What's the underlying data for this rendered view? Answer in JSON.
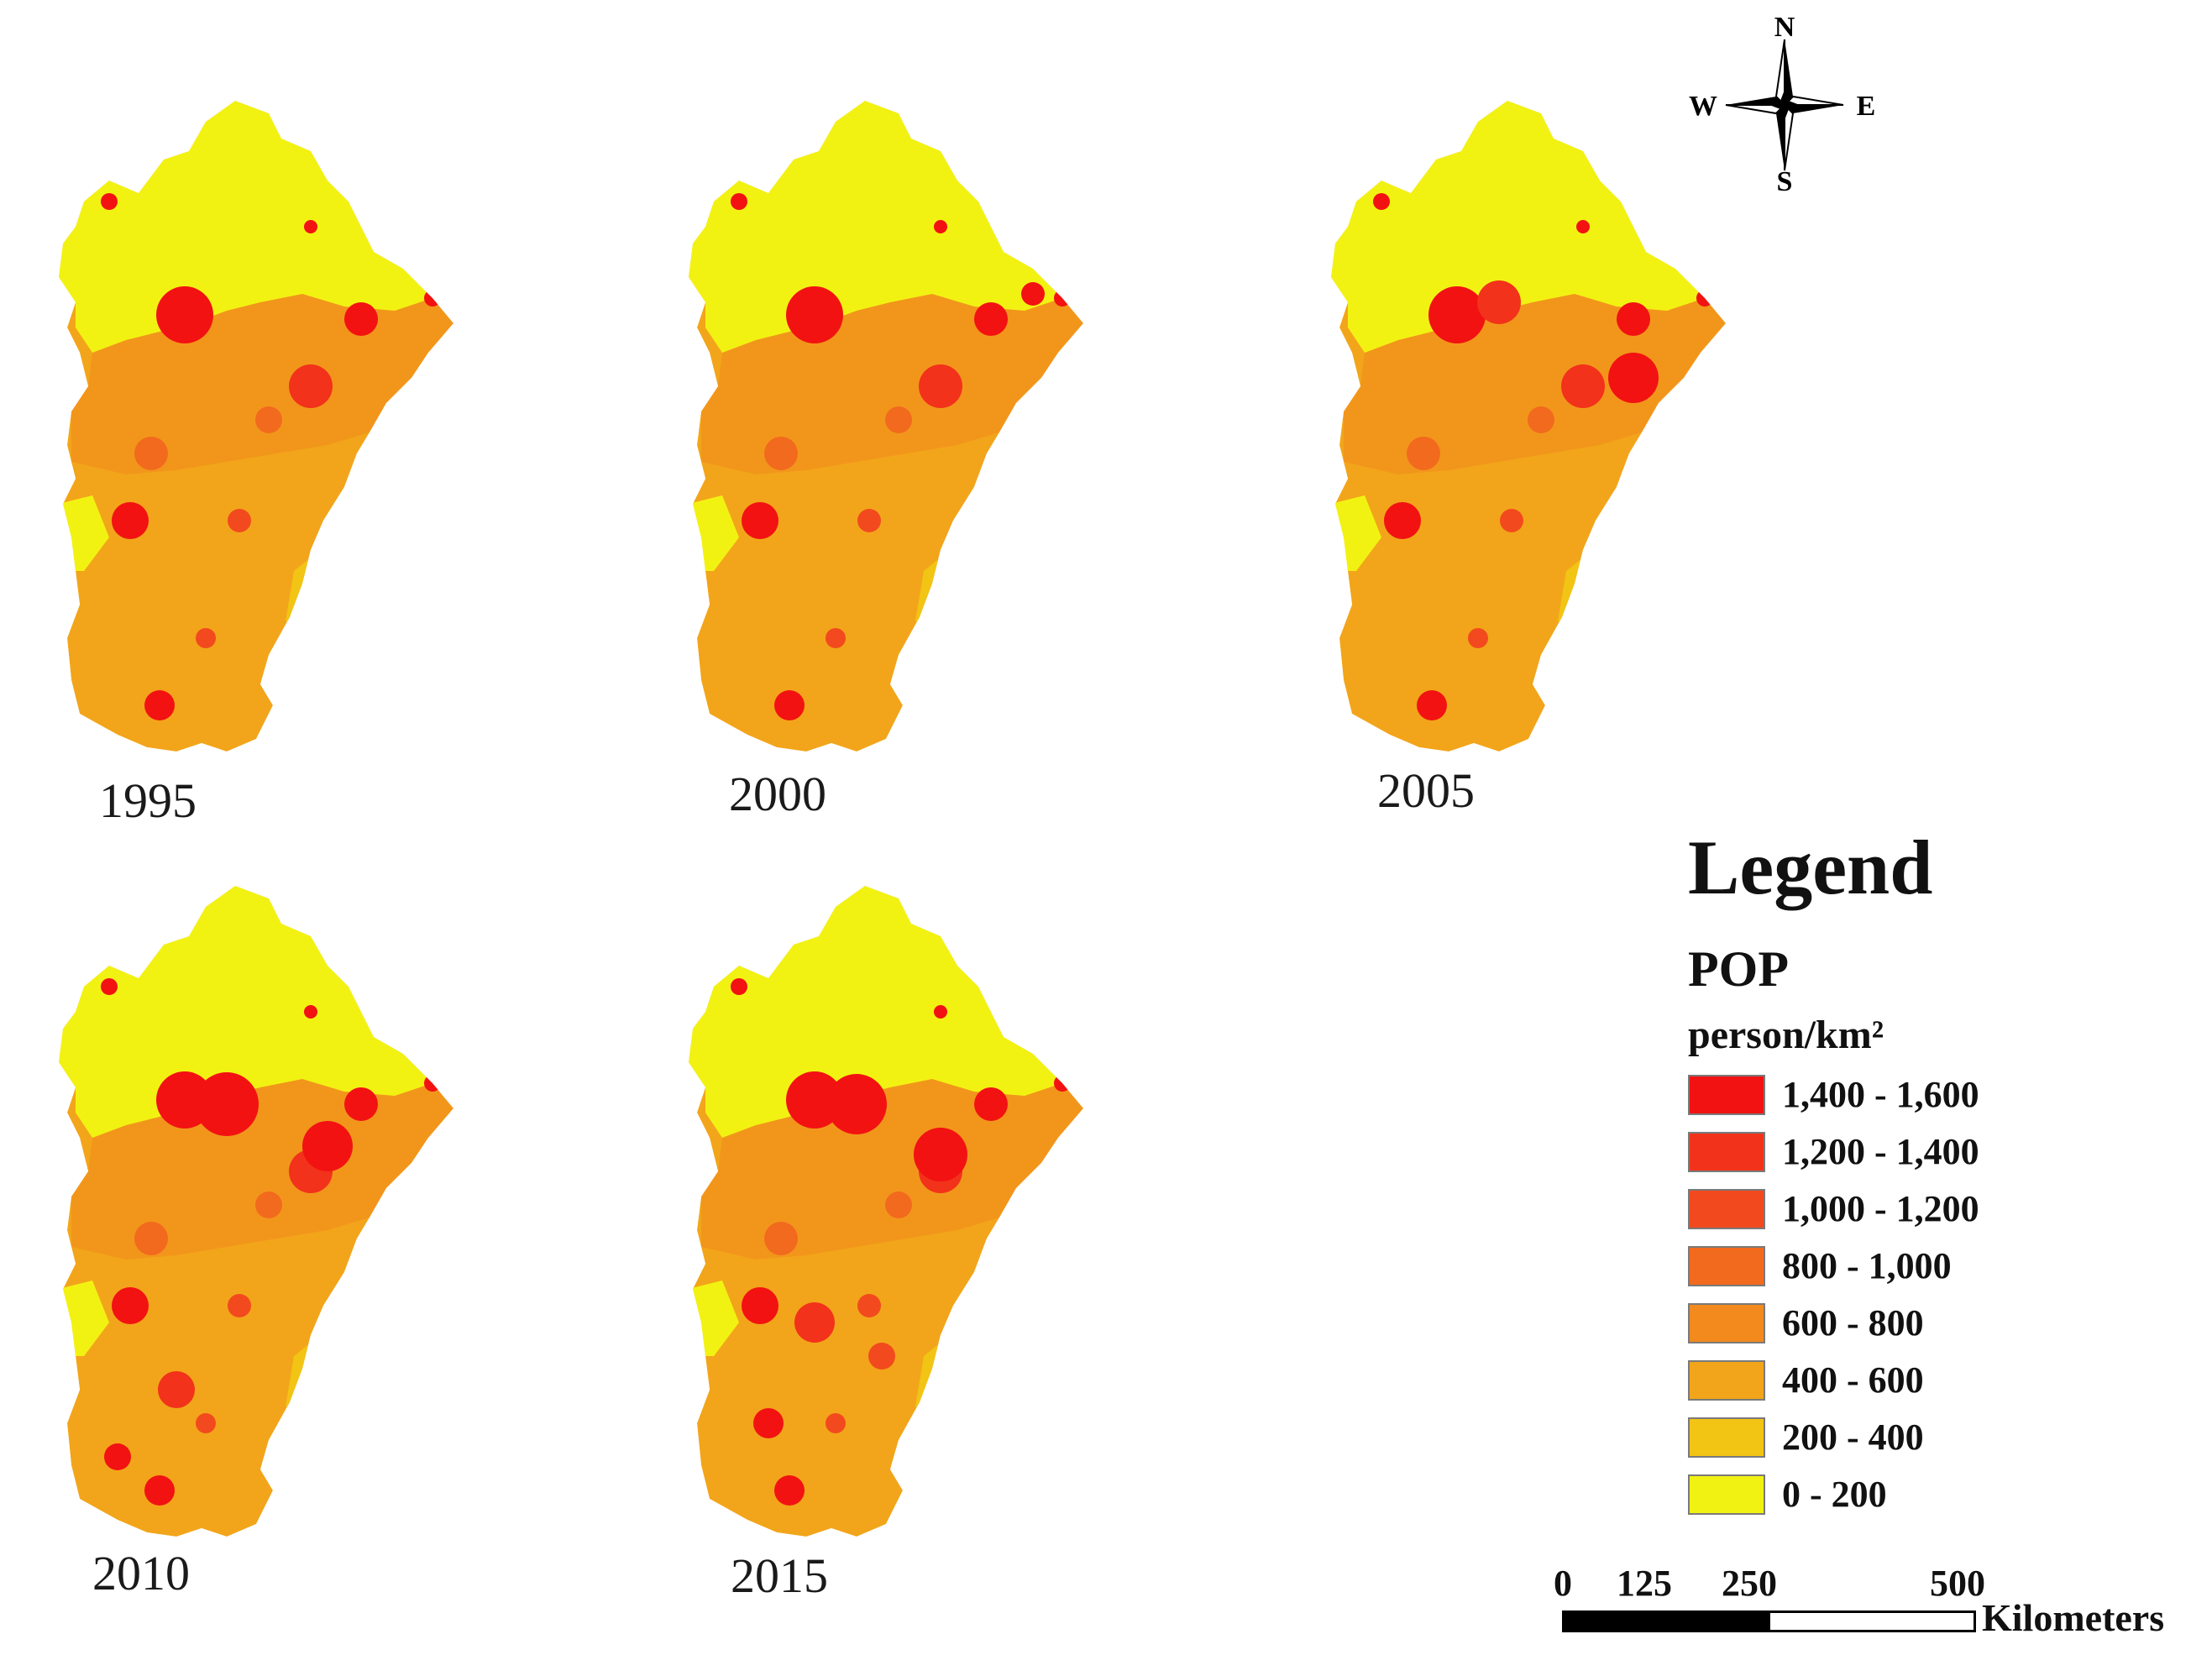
{
  "maps": [
    {
      "year": "1995"
    },
    {
      "year": "2000"
    },
    {
      "year": "2005"
    },
    {
      "year": "2010"
    },
    {
      "year": "2015"
    }
  ],
  "compass": {
    "n": "N",
    "s": "S",
    "e": "E",
    "w": "W"
  },
  "legend": {
    "title": "Legend",
    "field": "POP",
    "unit": "person/km²",
    "items": [
      {
        "label": "1,400 - 1,600",
        "color": "#f21212"
      },
      {
        "label": "1,200 - 1,400",
        "color": "#f2321a"
      },
      {
        "label": "1,000 - 1,200",
        "color": "#f24a1e"
      },
      {
        "label": "800 - 1,000",
        "color": "#f26a1e"
      },
      {
        "label": "600 - 800",
        "color": "#f28a1e"
      },
      {
        "label": "400 - 600",
        "color": "#f2a51a"
      },
      {
        "label": "200 - 400",
        "color": "#f2c414"
      },
      {
        "label": "0 - 200",
        "color": "#f2f212"
      }
    ]
  },
  "scalebar": {
    "ticks": [
      "0",
      "125",
      "250",
      "500"
    ],
    "units": "Kilometers"
  }
}
